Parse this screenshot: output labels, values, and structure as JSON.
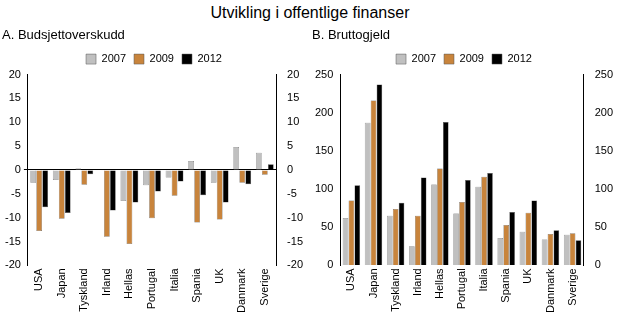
{
  "title": "Utvikling i offentlige finanser",
  "chart_data": [
    {
      "type": "bar",
      "title": "A. Budsjettoverskudd",
      "categories": [
        "USA",
        "Japan",
        "Tyskland",
        "Irland",
        "Hellas",
        "Portugal",
        "Italia",
        "Spania",
        "UK",
        "Danmark",
        "Sverige"
      ],
      "series": [
        {
          "name": "2007",
          "color": "#c0c0c0",
          "values": [
            -2.7,
            -2.1,
            0.3,
            0.1,
            -6.5,
            -3.2,
            -1.6,
            1.9,
            -2.7,
            4.8,
            3.6
          ]
        },
        {
          "name": "2009",
          "color": "#c8843c",
          "values": [
            -12.8,
            -10.2,
            -3.1,
            -14.0,
            -15.5,
            -10.1,
            -5.4,
            -11.0,
            -10.4,
            -2.7,
            -1.0
          ]
        },
        {
          "name": "2012",
          "color": "#000000",
          "values": [
            -7.8,
            -9.0,
            -0.9,
            -8.5,
            -6.8,
            -4.5,
            -2.4,
            -5.3,
            -6.8,
            -3.0,
            1.2
          ]
        }
      ],
      "ylim": [
        -20,
        20
      ],
      "yticks": [
        -20,
        -15,
        -10,
        -5,
        0,
        5,
        10,
        15,
        20
      ],
      "y2lim": [
        -20,
        20
      ],
      "y2ticks": [
        -20,
        -15,
        -10,
        -5,
        0,
        5,
        10,
        15,
        20
      ],
      "grid": false,
      "legend": "top"
    },
    {
      "type": "bar",
      "title": "B. Bruttogjeld",
      "categories": [
        "USA",
        "Japan",
        "Tyskland",
        "Irland",
        "Hellas",
        "Portugal",
        "Italia",
        "Spania",
        "UK",
        "Danmark",
        "Sverige"
      ],
      "series": [
        {
          "name": "2007",
          "color": "#c0c0c0",
          "values": [
            62,
            187,
            65,
            25,
            106,
            68,
            103,
            36,
            44,
            34,
            40
          ]
        },
        {
          "name": "2009",
          "color": "#c8843c",
          "values": [
            85,
            216,
            74,
            65,
            127,
            83,
            116,
            53,
            69,
            41,
            42
          ]
        },
        {
          "name": "2012",
          "color": "#000000",
          "values": [
            105,
            237,
            82,
            115,
            188,
            112,
            121,
            70,
            85,
            46,
            33
          ]
        }
      ],
      "ylim": [
        0,
        250
      ],
      "yticks": [
        0,
        50,
        100,
        150,
        200,
        250
      ],
      "y2lim": [
        0,
        250
      ],
      "y2ticks": [
        0,
        50,
        100,
        150,
        200,
        250
      ],
      "grid": false,
      "legend": "top"
    }
  ]
}
